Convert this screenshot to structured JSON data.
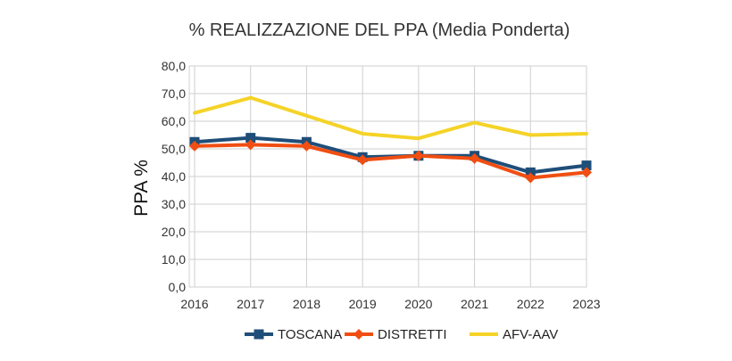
{
  "chart_data": {
    "type": "line",
    "title": "% REALIZZAZIONE DEL PPA (Media Ponderta)",
    "xlabel": "",
    "ylabel": "PPA %",
    "categories": [
      "2016",
      "2017",
      "2018",
      "2019",
      "2020",
      "2021",
      "2022",
      "2023"
    ],
    "y_ticks": [
      "0,0",
      "10,0",
      "20,0",
      "30,0",
      "40,0",
      "50,0",
      "60,0",
      "70,0",
      "80,0"
    ],
    "ylim": [
      0,
      80
    ],
    "grid": true,
    "legend_position": "bottom",
    "series": [
      {
        "name": "TOSCANA",
        "color": "#1f4e79",
        "marker": "square",
        "values": [
          52.5,
          54.0,
          52.5,
          47.0,
          47.5,
          47.5,
          41.5,
          44.0
        ]
      },
      {
        "name": "DISTRETTI",
        "color": "#f04e12",
        "marker": "diamond",
        "values": [
          51.0,
          51.5,
          51.0,
          46.0,
          47.5,
          46.5,
          39.5,
          41.5
        ]
      },
      {
        "name": "AFV-AAV",
        "color": "#f5d327",
        "marker": "none",
        "values": [
          63.0,
          68.5,
          62.0,
          55.5,
          53.8,
          59.5,
          55.0,
          55.5
        ]
      }
    ]
  }
}
